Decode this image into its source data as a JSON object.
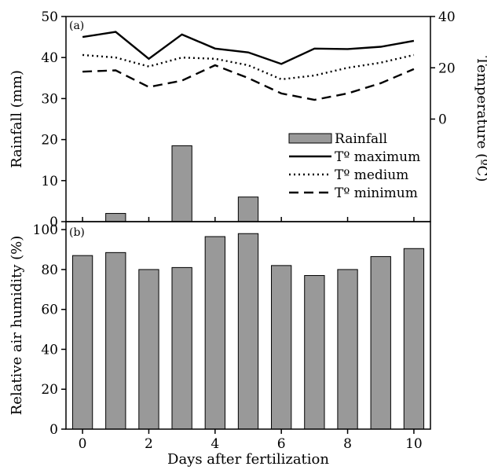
{
  "chart_data": [
    {
      "panel_label": "(a)",
      "type": "bar+line",
      "x": [
        0,
        1,
        2,
        3,
        4,
        5,
        6,
        7,
        8,
        9,
        10
      ],
      "xlim": [
        -0.5,
        10.5
      ],
      "ylabel_left": "Rainfall (mm)",
      "ylim_left": [
        0,
        50
      ],
      "yticks_left": [
        0,
        10,
        20,
        30,
        40,
        50
      ],
      "ylabel_right": "Temperature (ºC)",
      "ylim_right": [
        -40,
        40
      ],
      "yticks_right": [
        0,
        20,
        40
      ],
      "legend_position": "right",
      "bar_color": "#999999",
      "series": [
        {
          "name": "Rainfall",
          "kind": "bar",
          "axis": "left",
          "values": [
            0,
            2,
            0,
            18.5,
            0,
            6,
            0,
            0,
            0,
            0,
            0
          ]
        },
        {
          "name": "Tº maximum",
          "kind": "line",
          "style": "solid",
          "axis": "right",
          "values": [
            32,
            34,
            23.5,
            33,
            27.5,
            26,
            21.5,
            27.5,
            27.3,
            28.2,
            30.5
          ]
        },
        {
          "name": "Tº medium",
          "kind": "line",
          "style": "dotted",
          "axis": "right",
          "values": [
            25,
            24,
            20.5,
            24,
            23.5,
            21,
            15.5,
            17,
            20,
            22,
            25
          ]
        },
        {
          "name": "Tº minimum",
          "kind": "line",
          "style": "dashed",
          "axis": "right",
          "values": [
            18.5,
            19,
            12.5,
            15,
            21,
            16,
            10,
            7.5,
            10,
            14,
            19.5
          ]
        }
      ]
    },
    {
      "panel_label": "(b)",
      "type": "bar",
      "x": [
        0,
        1,
        2,
        3,
        4,
        5,
        6,
        7,
        8,
        9,
        10
      ],
      "xlim": [
        -0.5,
        10.5
      ],
      "xticks": [
        0,
        2,
        4,
        6,
        8,
        10
      ],
      "xlabel": "Days after fertilization",
      "ylabel": "Relative air humidity (%)",
      "ylim": [
        0,
        104
      ],
      "yticks": [
        0,
        20,
        40,
        60,
        80,
        100
      ],
      "bar_color": "#999999",
      "series": [
        {
          "name": "",
          "values": [
            87,
            88.5,
            80,
            81,
            96.5,
            98,
            82,
            77,
            80,
            86.5,
            90.5
          ]
        }
      ]
    }
  ]
}
